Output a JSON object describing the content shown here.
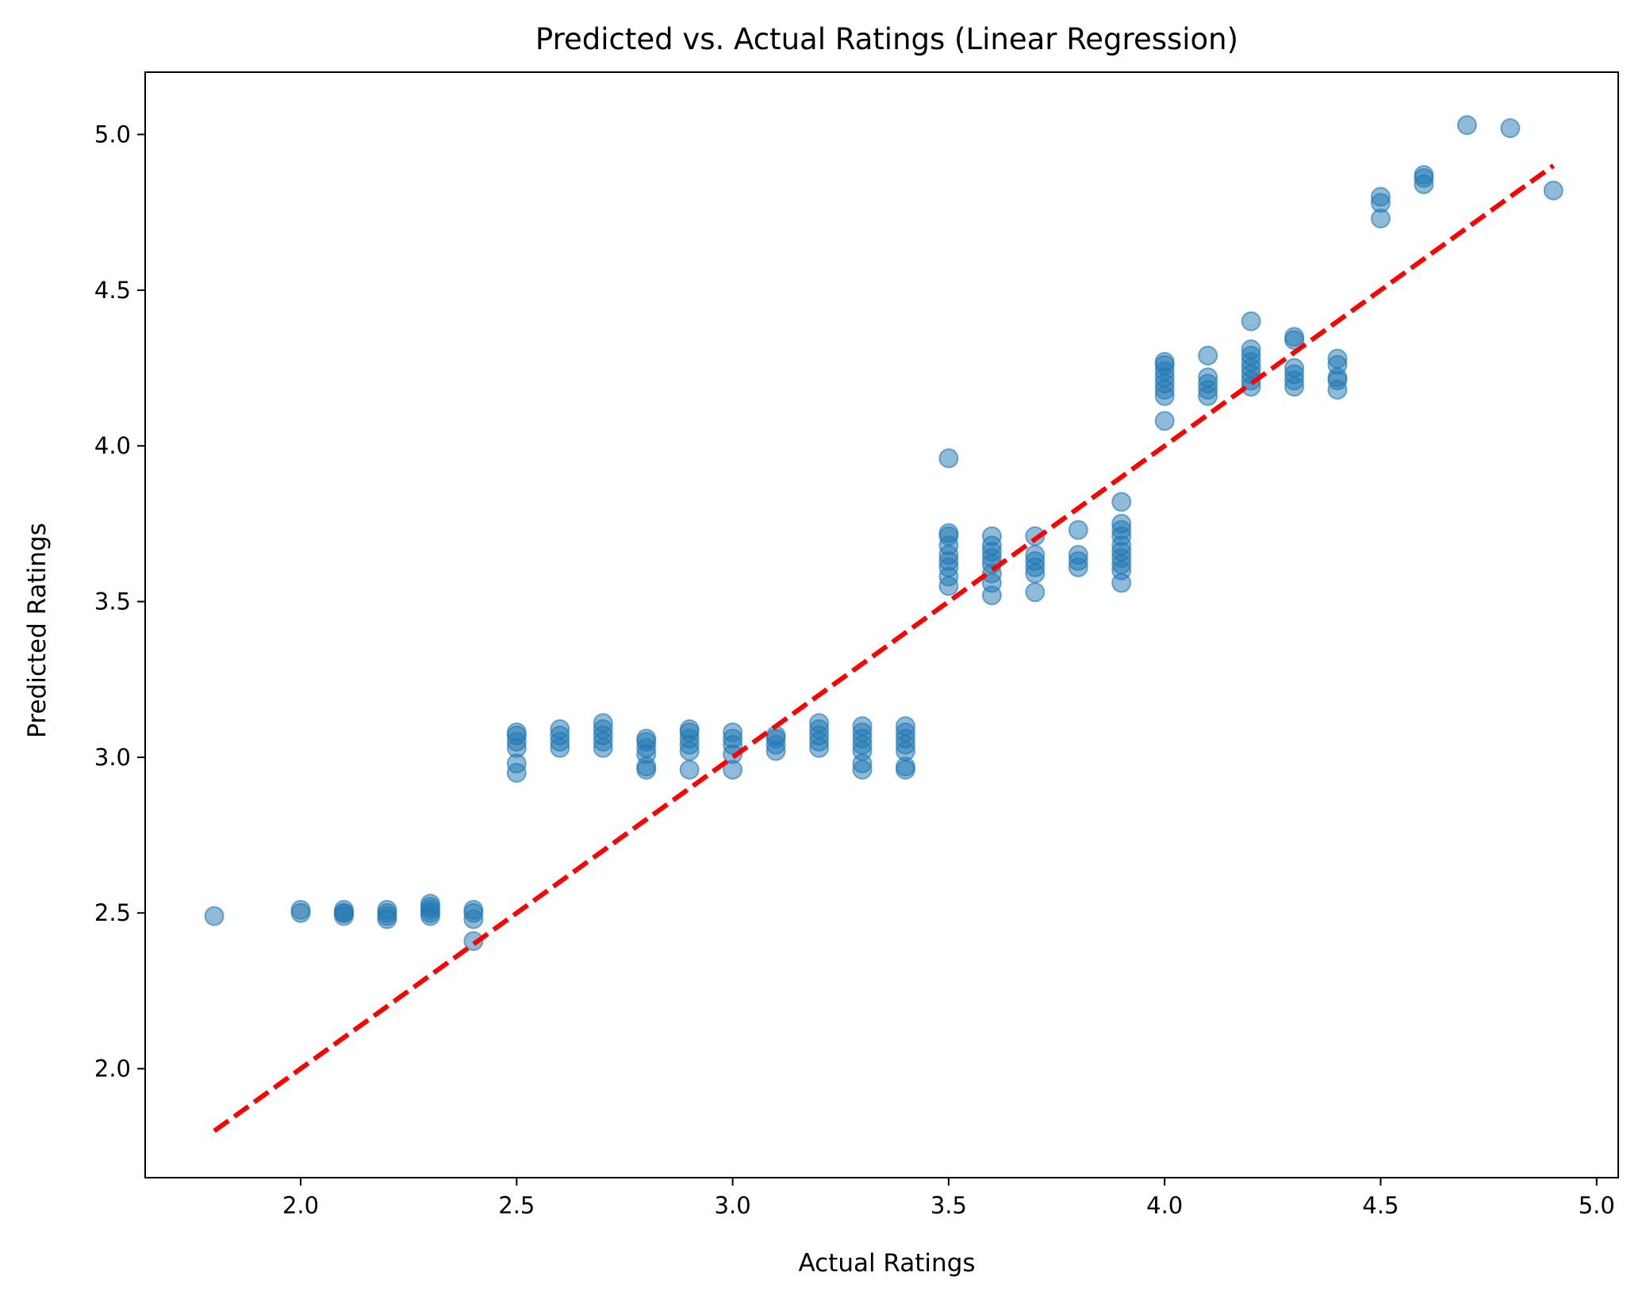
{
  "chart_data": {
    "type": "scatter",
    "title": "Predicted vs. Actual Ratings (Linear Regression)",
    "xlabel": "Actual Ratings",
    "ylabel": "Predicted Ratings",
    "xlim": [
      1.64,
      5.05
    ],
    "ylim": [
      1.65,
      5.2
    ],
    "xticks": [
      2.0,
      2.5,
      3.0,
      3.5,
      4.0,
      4.5,
      5.0
    ],
    "xtick_labels": [
      "2.0",
      "2.5",
      "3.0",
      "3.5",
      "4.0",
      "4.5",
      "5.0"
    ],
    "yticks": [
      2.0,
      2.5,
      3.0,
      3.5,
      4.0,
      4.5,
      5.0
    ],
    "ytick_labels": [
      "2.0",
      "2.5",
      "3.0",
      "3.5",
      "4.0",
      "4.5",
      "5.0"
    ],
    "grid": false,
    "legend": "none",
    "colors": {
      "points": "#1f77b4",
      "reference_line": "#ff0000"
    },
    "reference_line": {
      "style": "dashed",
      "x": [
        1.8,
        4.9
      ],
      "y": [
        1.8,
        4.9
      ]
    },
    "points": [
      {
        "x": 1.8,
        "y": 2.49
      },
      {
        "x": 2.0,
        "y": 2.5
      },
      {
        "x": 2.0,
        "y": 2.51
      },
      {
        "x": 2.1,
        "y": 2.49
      },
      {
        "x": 2.1,
        "y": 2.5
      },
      {
        "x": 2.1,
        "y": 2.51
      },
      {
        "x": 2.1,
        "y": 2.5
      },
      {
        "x": 2.2,
        "y": 2.48
      },
      {
        "x": 2.2,
        "y": 2.49
      },
      {
        "x": 2.2,
        "y": 2.5
      },
      {
        "x": 2.2,
        "y": 2.51
      },
      {
        "x": 2.3,
        "y": 2.49
      },
      {
        "x": 2.3,
        "y": 2.5
      },
      {
        "x": 2.3,
        "y": 2.51
      },
      {
        "x": 2.3,
        "y": 2.52
      },
      {
        "x": 2.3,
        "y": 2.53
      },
      {
        "x": 2.4,
        "y": 2.41
      },
      {
        "x": 2.4,
        "y": 2.48
      },
      {
        "x": 2.4,
        "y": 2.5
      },
      {
        "x": 2.4,
        "y": 2.51
      },
      {
        "x": 2.5,
        "y": 2.95
      },
      {
        "x": 2.5,
        "y": 2.98
      },
      {
        "x": 2.5,
        "y": 3.03
      },
      {
        "x": 2.5,
        "y": 3.05
      },
      {
        "x": 2.5,
        "y": 3.07
      },
      {
        "x": 2.5,
        "y": 3.08
      },
      {
        "x": 2.6,
        "y": 3.03
      },
      {
        "x": 2.6,
        "y": 3.05
      },
      {
        "x": 2.6,
        "y": 3.07
      },
      {
        "x": 2.6,
        "y": 3.09
      },
      {
        "x": 2.7,
        "y": 3.03
      },
      {
        "x": 2.7,
        "y": 3.05
      },
      {
        "x": 2.7,
        "y": 3.07
      },
      {
        "x": 2.7,
        "y": 3.09
      },
      {
        "x": 2.7,
        "y": 3.11
      },
      {
        "x": 2.8,
        "y": 2.96
      },
      {
        "x": 2.8,
        "y": 2.97
      },
      {
        "x": 2.8,
        "y": 3.01
      },
      {
        "x": 2.8,
        "y": 3.03
      },
      {
        "x": 2.8,
        "y": 3.05
      },
      {
        "x": 2.8,
        "y": 3.06
      },
      {
        "x": 2.9,
        "y": 2.96
      },
      {
        "x": 2.9,
        "y": 3.02
      },
      {
        "x": 2.9,
        "y": 3.04
      },
      {
        "x": 2.9,
        "y": 3.06
      },
      {
        "x": 2.9,
        "y": 3.08
      },
      {
        "x": 2.9,
        "y": 3.09
      },
      {
        "x": 3.0,
        "y": 2.96
      },
      {
        "x": 3.0,
        "y": 3.01
      },
      {
        "x": 3.0,
        "y": 3.04
      },
      {
        "x": 3.0,
        "y": 3.06
      },
      {
        "x": 3.0,
        "y": 3.08
      },
      {
        "x": 3.1,
        "y": 3.02
      },
      {
        "x": 3.1,
        "y": 3.04
      },
      {
        "x": 3.1,
        "y": 3.06
      },
      {
        "x": 3.1,
        "y": 3.07
      },
      {
        "x": 3.2,
        "y": 3.03
      },
      {
        "x": 3.2,
        "y": 3.05
      },
      {
        "x": 3.2,
        "y": 3.07
      },
      {
        "x": 3.2,
        "y": 3.09
      },
      {
        "x": 3.2,
        "y": 3.11
      },
      {
        "x": 3.3,
        "y": 2.96
      },
      {
        "x": 3.3,
        "y": 2.98
      },
      {
        "x": 3.3,
        "y": 3.02
      },
      {
        "x": 3.3,
        "y": 3.04
      },
      {
        "x": 3.3,
        "y": 3.06
      },
      {
        "x": 3.3,
        "y": 3.08
      },
      {
        "x": 3.3,
        "y": 3.1
      },
      {
        "x": 3.4,
        "y": 2.96
      },
      {
        "x": 3.4,
        "y": 2.97
      },
      {
        "x": 3.4,
        "y": 3.02
      },
      {
        "x": 3.4,
        "y": 3.04
      },
      {
        "x": 3.4,
        "y": 3.06
      },
      {
        "x": 3.4,
        "y": 3.08
      },
      {
        "x": 3.4,
        "y": 3.1
      },
      {
        "x": 3.5,
        "y": 3.55
      },
      {
        "x": 3.5,
        "y": 3.58
      },
      {
        "x": 3.5,
        "y": 3.61
      },
      {
        "x": 3.5,
        "y": 3.63
      },
      {
        "x": 3.5,
        "y": 3.65
      },
      {
        "x": 3.5,
        "y": 3.68
      },
      {
        "x": 3.5,
        "y": 3.71
      },
      {
        "x": 3.5,
        "y": 3.72
      },
      {
        "x": 3.5,
        "y": 3.96
      },
      {
        "x": 3.6,
        "y": 3.52
      },
      {
        "x": 3.6,
        "y": 3.56
      },
      {
        "x": 3.6,
        "y": 3.59
      },
      {
        "x": 3.6,
        "y": 3.62
      },
      {
        "x": 3.6,
        "y": 3.64
      },
      {
        "x": 3.6,
        "y": 3.66
      },
      {
        "x": 3.6,
        "y": 3.68
      },
      {
        "x": 3.6,
        "y": 3.71
      },
      {
        "x": 3.7,
        "y": 3.53
      },
      {
        "x": 3.7,
        "y": 3.59
      },
      {
        "x": 3.7,
        "y": 3.61
      },
      {
        "x": 3.7,
        "y": 3.63
      },
      {
        "x": 3.7,
        "y": 3.65
      },
      {
        "x": 3.7,
        "y": 3.71
      },
      {
        "x": 3.8,
        "y": 3.61
      },
      {
        "x": 3.8,
        "y": 3.63
      },
      {
        "x": 3.8,
        "y": 3.65
      },
      {
        "x": 3.8,
        "y": 3.73
      },
      {
        "x": 3.9,
        "y": 3.56
      },
      {
        "x": 3.9,
        "y": 3.6
      },
      {
        "x": 3.9,
        "y": 3.62
      },
      {
        "x": 3.9,
        "y": 3.64
      },
      {
        "x": 3.9,
        "y": 3.66
      },
      {
        "x": 3.9,
        "y": 3.68
      },
      {
        "x": 3.9,
        "y": 3.71
      },
      {
        "x": 3.9,
        "y": 3.73
      },
      {
        "x": 3.9,
        "y": 3.75
      },
      {
        "x": 3.9,
        "y": 3.82
      },
      {
        "x": 4.0,
        "y": 4.08
      },
      {
        "x": 4.0,
        "y": 4.16
      },
      {
        "x": 4.0,
        "y": 4.18
      },
      {
        "x": 4.0,
        "y": 4.2
      },
      {
        "x": 4.0,
        "y": 4.22
      },
      {
        "x": 4.0,
        "y": 4.24
      },
      {
        "x": 4.0,
        "y": 4.26
      },
      {
        "x": 4.0,
        "y": 4.27
      },
      {
        "x": 4.1,
        "y": 4.16
      },
      {
        "x": 4.1,
        "y": 4.18
      },
      {
        "x": 4.1,
        "y": 4.2
      },
      {
        "x": 4.1,
        "y": 4.22
      },
      {
        "x": 4.1,
        "y": 4.29
      },
      {
        "x": 4.2,
        "y": 4.19
      },
      {
        "x": 4.2,
        "y": 4.21
      },
      {
        "x": 4.2,
        "y": 4.23
      },
      {
        "x": 4.2,
        "y": 4.25
      },
      {
        "x": 4.2,
        "y": 4.27
      },
      {
        "x": 4.2,
        "y": 4.29
      },
      {
        "x": 4.2,
        "y": 4.31
      },
      {
        "x": 4.2,
        "y": 4.4
      },
      {
        "x": 4.3,
        "y": 4.19
      },
      {
        "x": 4.3,
        "y": 4.21
      },
      {
        "x": 4.3,
        "y": 4.23
      },
      {
        "x": 4.3,
        "y": 4.25
      },
      {
        "x": 4.3,
        "y": 4.34
      },
      {
        "x": 4.3,
        "y": 4.35
      },
      {
        "x": 4.4,
        "y": 4.18
      },
      {
        "x": 4.4,
        "y": 4.21
      },
      {
        "x": 4.4,
        "y": 4.22
      },
      {
        "x": 4.4,
        "y": 4.26
      },
      {
        "x": 4.4,
        "y": 4.28
      },
      {
        "x": 4.5,
        "y": 4.73
      },
      {
        "x": 4.5,
        "y": 4.78
      },
      {
        "x": 4.5,
        "y": 4.8
      },
      {
        "x": 4.6,
        "y": 4.84
      },
      {
        "x": 4.6,
        "y": 4.86
      },
      {
        "x": 4.6,
        "y": 4.87
      },
      {
        "x": 4.7,
        "y": 5.03
      },
      {
        "x": 4.8,
        "y": 5.02
      },
      {
        "x": 4.9,
        "y": 4.82
      }
    ]
  }
}
